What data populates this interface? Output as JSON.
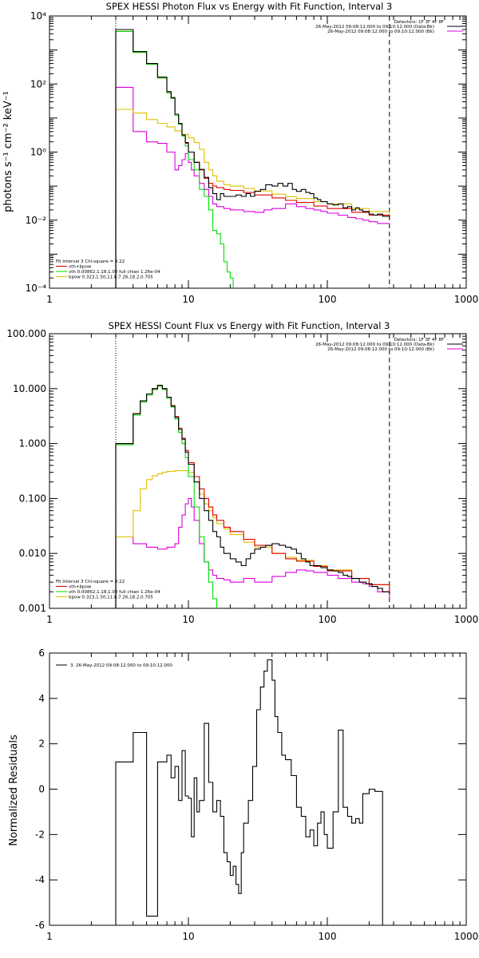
{
  "colors": {
    "data": "#000000",
    "total": "#e00000",
    "vth": "#00dd00",
    "bpow": "#dfc000",
    "bk": "#dd00dd"
  },
  "chart_data": [
    {
      "type": "line",
      "title": "SPEX HESSI Photon Flux vs Energy with Fit Function, Interval 3",
      "ylabel": "photons s⁻¹ cm⁻² keV⁻¹",
      "xlabel": "",
      "xscale": "log",
      "yscale": "log",
      "xlim": [
        1,
        1000
      ],
      "ylim": [
        0.0001,
        10000
      ],
      "xticks": [
        "1",
        "10",
        "100",
        "1000"
      ],
      "yticks": [
        "10⁻⁴",
        "10⁻²",
        "10⁰",
        "10²",
        "10⁴"
      ],
      "legend_top": [
        "Detectors: 1F 3F 4F 8F",
        "26-May-2012 09:08:12.000 to 09:10:12.000 (Data-Bk)",
        "26-May-2012 09:08:12.000 to 09:10:12.000 (Bk)"
      ],
      "legend_bottom": [
        "Fit Interval 3   Chi-square = 8.22",
        "vth+bpow",
        "vth 0.00862,1.18,1.00  full chian 1.26e-04",
        "bpow 0.323,1.50,11.8,7.26,18.2,0.705"
      ],
      "vlines": [
        3.0,
        280
      ],
      "series": [
        {
          "name": "Data-Bk",
          "role": "data",
          "x": [
            3.0,
            3.5,
            4.0,
            4.5,
            5.0,
            5.5,
            6.0,
            6.5,
            7.0,
            7.5,
            8.0,
            8.5,
            9.0,
            9.5,
            10.0,
            11,
            12,
            13,
            14,
            15,
            16,
            17,
            18,
            19,
            20,
            22,
            24,
            26,
            28,
            30,
            33,
            36,
            40,
            44,
            48,
            52,
            56,
            60,
            65,
            70,
            75,
            80,
            85,
            90,
            95,
            100,
            110,
            120,
            130,
            140,
            150,
            160,
            170,
            180,
            190,
            200,
            215,
            230,
            250,
            280
          ],
          "y": [
            4000,
            4000,
            900,
            900,
            400,
            400,
            160,
            160,
            60,
            40,
            13,
            7,
            3.2,
            1.9,
            1.0,
            0.5,
            0.31,
            0.18,
            0.09,
            0.06,
            0.04,
            0.06,
            0.05,
            0.05,
            0.05,
            0.055,
            0.05,
            0.06,
            0.05,
            0.07,
            0.08,
            0.11,
            0.1,
            0.12,
            0.1,
            0.12,
            0.08,
            0.07,
            0.08,
            0.065,
            0.06,
            0.045,
            0.04,
            0.035,
            0.035,
            0.03,
            0.028,
            0.03,
            0.023,
            0.025,
            0.02,
            0.023,
            0.02,
            0.018,
            0.018,
            0.015,
            0.014,
            0.015,
            0.013,
            0.012
          ]
        },
        {
          "name": "vth+bpow",
          "role": "total",
          "x": [
            3.0,
            3.5,
            4.0,
            4.5,
            5.0,
            5.5,
            6.0,
            6.5,
            7.0,
            7.5,
            8.0,
            8.5,
            9.0,
            9.5,
            10.0,
            11,
            12,
            13,
            14,
            15,
            16,
            18,
            20,
            25,
            30,
            40,
            50,
            60,
            80,
            100,
            150,
            200,
            280
          ],
          "y": [
            3500,
            3500,
            850,
            850,
            380,
            380,
            150,
            150,
            55,
            38,
            12,
            6.5,
            3.0,
            1.8,
            1.0,
            0.5,
            0.3,
            0.17,
            0.12,
            0.1,
            0.09,
            0.08,
            0.075,
            0.065,
            0.055,
            0.045,
            0.038,
            0.033,
            0.026,
            0.022,
            0.017,
            0.014,
            0.011
          ]
        },
        {
          "name": "vth",
          "role": "vth",
          "x": [
            3.0,
            3.5,
            4.0,
            4.5,
            5.0,
            5.5,
            6.0,
            6.5,
            7.0,
            7.5,
            8.0,
            8.5,
            9.0,
            9.5,
            10.0,
            11,
            12,
            13,
            14,
            15,
            16,
            17,
            18,
            19,
            20,
            21
          ],
          "y": [
            3500,
            3500,
            850,
            850,
            380,
            380,
            150,
            150,
            55,
            38,
            12,
            6.5,
            3.0,
            1.5,
            0.6,
            0.3,
            0.08,
            0.05,
            0.02,
            0.005,
            0.004,
            0.002,
            0.0006,
            0.0003,
            0.0002,
            0.0001
          ]
        },
        {
          "name": "bpow",
          "role": "bpow",
          "x": [
            3.0,
            4.0,
            5.0,
            6.0,
            7.0,
            8.0,
            9.0,
            10.0,
            11,
            12,
            13,
            14,
            15,
            16,
            18,
            20,
            25,
            30,
            40,
            50,
            60,
            80,
            100,
            150,
            200,
            280
          ],
          "y": [
            18,
            14,
            9,
            7,
            5.5,
            4.2,
            3.3,
            2.6,
            1.9,
            1.2,
            0.5,
            0.3,
            0.2,
            0.14,
            0.11,
            0.1,
            0.085,
            0.072,
            0.058,
            0.049,
            0.043,
            0.035,
            0.03,
            0.022,
            0.018,
            0.013
          ]
        },
        {
          "name": "Bk",
          "role": "bk",
          "x": [
            3.0,
            4.0,
            5.0,
            6.0,
            7.0,
            8.0,
            8.5,
            9.0,
            9.5,
            10.0,
            10.5,
            11,
            12,
            13,
            14,
            15,
            16,
            18,
            20,
            25,
            30,
            35,
            40,
            50,
            60,
            70,
            80,
            90,
            100,
            120,
            140,
            160,
            180,
            200,
            230,
            280
          ],
          "y": [
            80,
            4,
            2,
            1.8,
            1.0,
            0.3,
            0.4,
            0.6,
            0.9,
            0.5,
            0.3,
            0.2,
            0.12,
            0.08,
            0.05,
            0.03,
            0.025,
            0.022,
            0.02,
            0.018,
            0.017,
            0.02,
            0.022,
            0.03,
            0.025,
            0.022,
            0.02,
            0.018,
            0.016,
            0.014,
            0.012,
            0.011,
            0.01,
            0.009,
            0.008,
            0.008
          ]
        }
      ]
    },
    {
      "type": "line",
      "title": "SPEX HESSI Count Flux vs Energy with Fit Function, Interval 3",
      "ylabel": "",
      "xlabel": "",
      "xscale": "log",
      "yscale": "log",
      "xlim": [
        1,
        1000
      ],
      "ylim": [
        0.001,
        100
      ],
      "xticks": [
        "1",
        "10",
        "100",
        "1000"
      ],
      "yticks": [
        "0.001",
        "0.010",
        "0.100",
        "1.000",
        "10.000",
        "100.000"
      ],
      "legend_top": [
        "Detectors: 1F 3F 4F 8F",
        "26-May-2012 09:08:12.000 to 09:10:12.000 (Data-Bk)",
        "26-May-2012 09:08:12.000 to 09:10:12.000 (Bk)"
      ],
      "legend_bottom": [
        "Fit Interval 3   Chi-square = 8.22",
        "vth+bpow",
        "vth 0.00862,1.18,1.00  full chian 1.26e-04",
        "bpow 0.323,1.50,11.8,7.26,18.2,0.705"
      ],
      "vlines": [
        3.0,
        280
      ],
      "series": [
        {
          "name": "Data-Bk",
          "role": "data",
          "x": [
            3.0,
            4.0,
            4.5,
            5.0,
            5.5,
            6.0,
            6.5,
            7.0,
            7.5,
            8.0,
            8.5,
            9.0,
            9.5,
            10,
            11,
            12,
            13,
            14,
            15,
            16,
            17,
            18,
            20,
            22,
            24,
            26,
            28,
            30,
            33,
            36,
            40,
            45,
            50,
            55,
            60,
            65,
            70,
            75,
            80,
            90,
            100,
            110,
            120,
            130,
            140,
            150,
            170,
            190,
            210,
            230,
            250,
            280
          ],
          "y": [
            1.0,
            3.5,
            6,
            8,
            10,
            11.5,
            10,
            7,
            4.8,
            3.0,
            1.8,
            1.2,
            0.7,
            0.42,
            0.2,
            0.1,
            0.06,
            0.04,
            0.025,
            0.02,
            0.013,
            0.01,
            0.008,
            0.007,
            0.006,
            0.008,
            0.01,
            0.012,
            0.013,
            0.014,
            0.015,
            0.014,
            0.013,
            0.012,
            0.01,
            0.008,
            0.007,
            0.006,
            0.006,
            0.0055,
            0.005,
            0.0048,
            0.0045,
            0.004,
            0.0038,
            0.0035,
            0.003,
            0.0028,
            0.0025,
            0.0023,
            0.002,
            0.0018
          ]
        },
        {
          "name": "vth+bpow",
          "role": "total",
          "x": [
            3.0,
            4.0,
            4.5,
            5.0,
            5.5,
            6.0,
            6.5,
            7.0,
            7.5,
            8.0,
            8.5,
            9.0,
            9.5,
            10,
            11,
            12,
            13,
            14,
            15,
            16,
            18,
            20,
            25,
            30,
            40,
            50,
            60,
            80,
            100,
            150,
            200,
            280
          ],
          "y": [
            1.0,
            3.5,
            6,
            8,
            10,
            11.5,
            10,
            7,
            4.9,
            3.1,
            1.9,
            1.25,
            0.75,
            0.45,
            0.25,
            0.15,
            0.1,
            0.07,
            0.05,
            0.04,
            0.03,
            0.025,
            0.018,
            0.014,
            0.01,
            0.008,
            0.0072,
            0.0058,
            0.0048,
            0.0035,
            0.0027,
            0.0019
          ]
        },
        {
          "name": "vth",
          "role": "vth",
          "x": [
            3.0,
            4.0,
            4.5,
            5.0,
            5.5,
            6.0,
            6.5,
            7.0,
            7.5,
            8.0,
            8.5,
            9.0,
            9.5,
            10,
            11,
            12,
            13,
            14,
            15,
            16
          ],
          "y": [
            0.95,
            3.3,
            5.7,
            7.6,
            9.6,
            11,
            9.6,
            6.7,
            4.6,
            2.8,
            1.6,
            1.0,
            0.55,
            0.25,
            0.07,
            0.02,
            0.007,
            0.003,
            0.0015,
            0.001
          ]
        },
        {
          "name": "bpow",
          "role": "bpow",
          "x": [
            3.0,
            4.0,
            4.5,
            5.0,
            5.5,
            6.0,
            6.5,
            7.0,
            8.0,
            9.0,
            10,
            11,
            12,
            13,
            14,
            15,
            16,
            18,
            20,
            25,
            30,
            40,
            50,
            60,
            80,
            100,
            150,
            200,
            280
          ],
          "y": [
            0.02,
            0.06,
            0.15,
            0.22,
            0.26,
            0.28,
            0.3,
            0.31,
            0.32,
            0.32,
            0.3,
            0.2,
            0.12,
            0.08,
            0.06,
            0.045,
            0.035,
            0.028,
            0.022,
            0.016,
            0.013,
            0.01,
            0.0085,
            0.0075,
            0.006,
            0.005,
            0.0035,
            0.0027,
            0.0019
          ]
        },
        {
          "name": "Bk",
          "role": "bk",
          "x": [
            3.0,
            4.0,
            5.0,
            6.0,
            7.0,
            8.0,
            8.5,
            9.0,
            9.5,
            10,
            10.5,
            11,
            12,
            13,
            14,
            15,
            16,
            18,
            20,
            25,
            30,
            40,
            50,
            60,
            70,
            80,
            100,
            120,
            150,
            180,
            200,
            230,
            280
          ],
          "y": [
            0.02,
            0.015,
            0.013,
            0.012,
            0.013,
            0.015,
            0.03,
            0.05,
            0.08,
            0.1,
            0.07,
            0.04,
            0.015,
            0.007,
            0.005,
            0.004,
            0.0035,
            0.0033,
            0.003,
            0.0035,
            0.003,
            0.0038,
            0.0045,
            0.005,
            0.0048,
            0.0045,
            0.004,
            0.0035,
            0.003,
            0.0028,
            0.0025,
            0.002,
            0.0015
          ]
        }
      ]
    },
    {
      "type": "line",
      "title": "",
      "ylabel": "Normalized Residuals",
      "xlabel": "",
      "xscale": "log",
      "yscale": "linear",
      "xlim": [
        1,
        1000
      ],
      "ylim": [
        -6,
        6
      ],
      "xticks": [
        "1",
        "10",
        "100",
        "1000"
      ],
      "yticks": [
        "-6",
        "-4",
        "-2",
        "0",
        "2",
        "4",
        "6"
      ],
      "legend_top": [
        "3. 26-May-2012 09:08:12.000 to 09:10:12.000"
      ],
      "legend_bottom": [],
      "vlines": [],
      "series": [
        {
          "name": "3. 26-May-2012 09:08:12.000 to 09:10:12.000",
          "role": "data",
          "x": [
            3.0,
            4.0,
            5.0,
            6.0,
            7.0,
            7.5,
            8.0,
            8.5,
            9.0,
            9.5,
            10,
            10.5,
            11,
            11.5,
            12,
            13,
            14,
            15,
            16,
            17,
            18,
            19,
            20,
            21,
            22,
            23,
            24,
            25,
            27,
            29,
            31,
            33,
            35,
            37,
            40,
            42,
            44,
            47,
            50,
            55,
            60,
            65,
            70,
            75,
            80,
            85,
            90,
            95,
            100,
            110,
            120,
            130,
            140,
            150,
            160,
            170,
            180,
            200,
            220,
            250,
            280
          ],
          "y": [
            1.2,
            2.5,
            -5.6,
            1.2,
            1.5,
            0.5,
            1.0,
            -0.5,
            1.7,
            -0.3,
            -0.4,
            -2.1,
            0.5,
            -1.0,
            -0.5,
            2.9,
            0.3,
            -1.0,
            -0.5,
            -1.2,
            -2.8,
            -3.2,
            -3.8,
            -3.4,
            -4.2,
            -4.6,
            -2.8,
            -1.5,
            -0.5,
            1.0,
            3.5,
            4.5,
            5.2,
            5.7,
            4.8,
            3.2,
            2.5,
            1.5,
            1.3,
            0.6,
            -0.8,
            -1.2,
            -2.1,
            -1.8,
            -2.5,
            -1.5,
            -1.0,
            -2.0,
            -2.6,
            -1.0,
            2.6,
            -0.8,
            -1.2,
            -1.5,
            -1.3,
            -1.5,
            -0.2,
            0.0,
            -0.1,
            -6.0,
            -6.0
          ]
        }
      ]
    }
  ]
}
